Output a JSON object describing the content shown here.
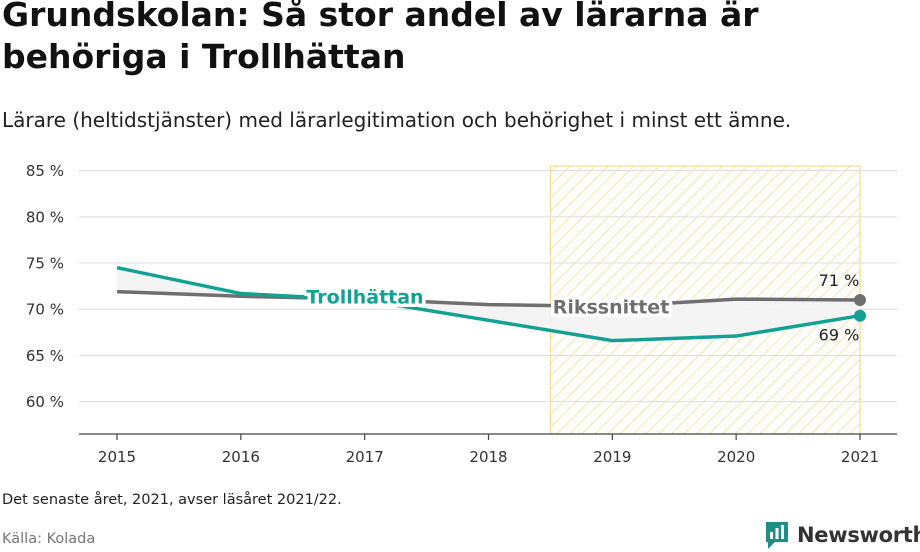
{
  "title": "Grundskolan: Så stor andel av lärarna är behöriga i Trollhättan",
  "subtitle": "Lärare (heltidstjänster) med lärarlegitimation och behörighet i minst ett ämne.",
  "note": "Det senaste året, 2021, avser läsåret 2021/22.",
  "source": "Källa: Kolada",
  "brand": "Newsworthy",
  "colors": {
    "trollhattan": "#14a195",
    "riket": "#6f6e70",
    "highlight": "#f5dc8c",
    "brand": "#1f8f86"
  },
  "chart_data": {
    "type": "line",
    "title": "Grundskolan: Så stor andel av lärarna är behöriga i Trollhättan",
    "x": [
      2015,
      2016,
      2017,
      2018,
      2019,
      2020,
      2021
    ],
    "ylim": [
      56.5,
      85.5
    ],
    "yticks": [
      60,
      65,
      70,
      75,
      80,
      85
    ],
    "ytick_labels": [
      "60 %",
      "65 %",
      "70 %",
      "75 %",
      "80 %",
      "85 %"
    ],
    "xtick_labels": [
      "2015",
      "2016",
      "2017",
      "2018",
      "2019",
      "2020",
      "2021"
    ],
    "grid": true,
    "highlight": {
      "from": 2018.5,
      "to": 2021
    },
    "series": [
      {
        "name": "Trollhättan",
        "values": [
          74.5,
          71.7,
          71.0,
          68.8,
          66.6,
          67.1,
          69.3
        ],
        "end_label": "69 %"
      },
      {
        "name": "Rikssnittet",
        "values": [
          71.9,
          71.4,
          71.1,
          70.5,
          70.3,
          71.1,
          71.0
        ],
        "end_label": "71 %"
      }
    ]
  }
}
